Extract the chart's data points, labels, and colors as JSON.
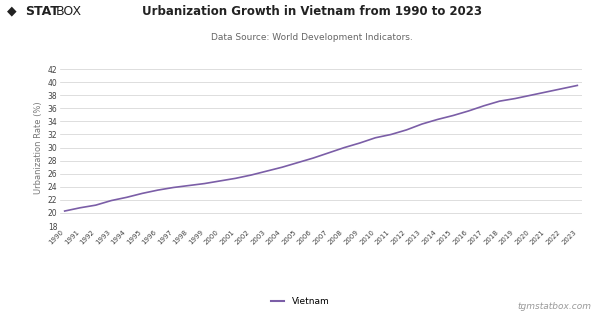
{
  "title": "Urbanization Growth in Vietnam from 1990 to 2023",
  "subtitle": "Data Source: World Development Indicators.",
  "ylabel": "Urbanization Rate (%)",
  "line_color": "#7B5EA7",
  "background_color": "#ffffff",
  "grid_color": "#d0d0d0",
  "years": [
    1990,
    1991,
    1992,
    1993,
    1994,
    1995,
    1996,
    1997,
    1998,
    1999,
    2000,
    2001,
    2002,
    2003,
    2004,
    2005,
    2006,
    2007,
    2008,
    2009,
    2010,
    2011,
    2012,
    2013,
    2014,
    2015,
    2016,
    2017,
    2018,
    2019,
    2020,
    2021,
    2022,
    2023
  ],
  "values": [
    20.3,
    20.8,
    21.2,
    21.9,
    22.4,
    23.0,
    23.5,
    23.9,
    24.2,
    24.5,
    24.9,
    25.3,
    25.8,
    26.4,
    27.0,
    27.7,
    28.4,
    29.2,
    30.0,
    30.7,
    31.5,
    32.0,
    32.7,
    33.6,
    34.3,
    34.9,
    35.6,
    36.4,
    37.1,
    37.5,
    38.0,
    38.5,
    39.0,
    39.5
  ],
  "ylim_min": 18,
  "ylim_max": 42,
  "yticks": [
    18,
    20,
    22,
    24,
    26,
    28,
    30,
    32,
    34,
    36,
    38,
    40,
    42
  ],
  "legend_label": "Vietnam",
  "watermark": "tgmstatbox.com",
  "logo_diamond": "◆",
  "logo_stat": "STAT",
  "logo_box": "BOX"
}
